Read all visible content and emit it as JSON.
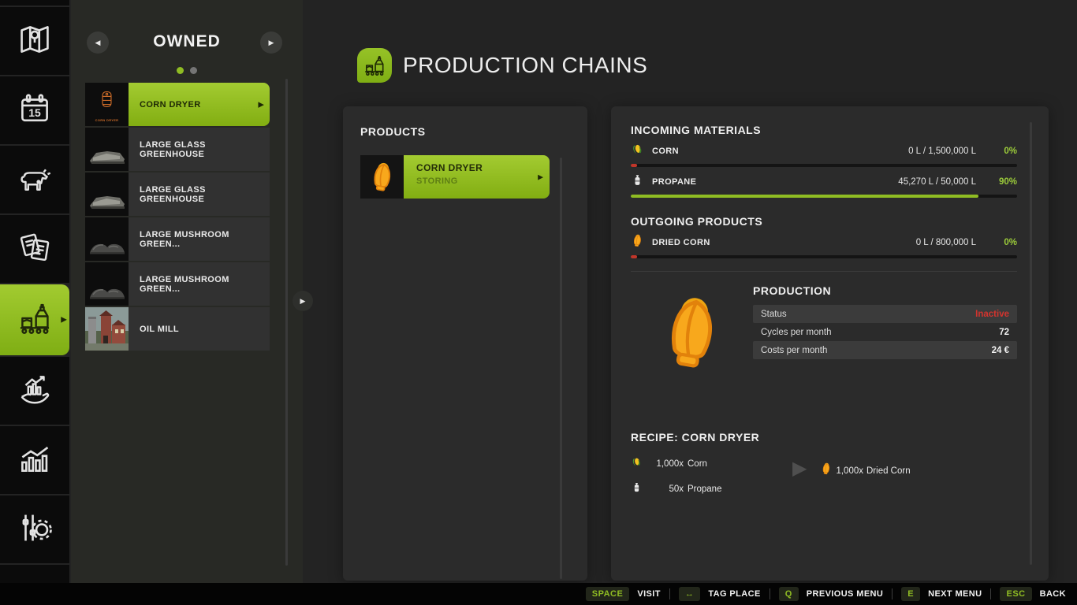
{
  "colors": {
    "accent": "#8fbc23",
    "red": "#c1362a",
    "percent_green": "#9ccc3a",
    "status_red": "#d2342e"
  },
  "sidebar": {
    "items": [
      {
        "icon": "map-icon",
        "active": false
      },
      {
        "icon": "calendar-icon",
        "active": false
      },
      {
        "icon": "animals-icon",
        "active": false
      },
      {
        "icon": "finances-icon",
        "active": false
      },
      {
        "icon": "production-icon",
        "active": true
      },
      {
        "icon": "sales-icon",
        "active": false
      },
      {
        "icon": "statistics-icon",
        "active": false
      },
      {
        "icon": "settings-icon",
        "active": false
      }
    ]
  },
  "owned_panel": {
    "title": "OWNED",
    "pages": {
      "active": 1,
      "total": 2
    },
    "items": [
      {
        "label": "CORN DRYER",
        "thumb_label": "CORN DRYER",
        "selected": true
      },
      {
        "label": "LARGE GLASS GREENHOUSE",
        "selected": false
      },
      {
        "label": "LARGE GLASS GREENHOUSE",
        "selected": false
      },
      {
        "label": "LARGE MUSHROOM GREEN...",
        "selected": false
      },
      {
        "label": "LARGE MUSHROOM GREEN...",
        "selected": false
      },
      {
        "label": "OIL MILL",
        "selected": false
      }
    ]
  },
  "header": {
    "title": "PRODUCTION CHAINS"
  },
  "products_panel": {
    "title": "PRODUCTS",
    "items": [
      {
        "title": "CORN DRYER",
        "subtitle": "STORING"
      }
    ]
  },
  "details": {
    "incoming_title": "INCOMING MATERIALS",
    "incoming": [
      {
        "name": "CORN",
        "icon": "corn-icon",
        "amount": "0 L / 1,500,000 L",
        "percent": "0%",
        "fill_percent": 0
      },
      {
        "name": "PROPANE",
        "icon": "propane-icon",
        "amount": "45,270 L / 50,000 L",
        "percent": "90%",
        "fill_percent": 90
      }
    ],
    "outgoing_title": "OUTGOING PRODUCTS",
    "outgoing": [
      {
        "name": "DRIED CORN",
        "icon": "dried-corn-icon",
        "amount": "0 L / 800,000 L",
        "percent": "0%",
        "fill_percent": 0
      }
    ],
    "production": {
      "title": "PRODUCTION",
      "rows": [
        {
          "label": "Status",
          "value": "Inactive",
          "value_color": "#d2342e"
        },
        {
          "label": "Cycles per month",
          "value": "72"
        },
        {
          "label": "Costs per month",
          "value": "24 €"
        }
      ]
    },
    "recipe": {
      "title": "RECIPE: CORN DRYER",
      "inputs": [
        {
          "qty": "1,000x",
          "name": "Corn",
          "icon": "corn-icon"
        },
        {
          "qty": "50x",
          "name": "Propane",
          "icon": "propane-icon"
        }
      ],
      "outputs": [
        {
          "qty": "1,000x",
          "name": "Dried Corn",
          "icon": "dried-corn-icon"
        }
      ]
    }
  },
  "bottom_bar": {
    "hints": [
      {
        "key": "SPACE",
        "label": "VISIT"
      },
      {
        "key": "↔",
        "label": "TAG PLACE"
      },
      {
        "key": "Q",
        "label": "PREVIOUS MENU"
      },
      {
        "key": "E",
        "label": "NEXT MENU"
      },
      {
        "key": "ESC",
        "label": "BACK"
      }
    ]
  }
}
